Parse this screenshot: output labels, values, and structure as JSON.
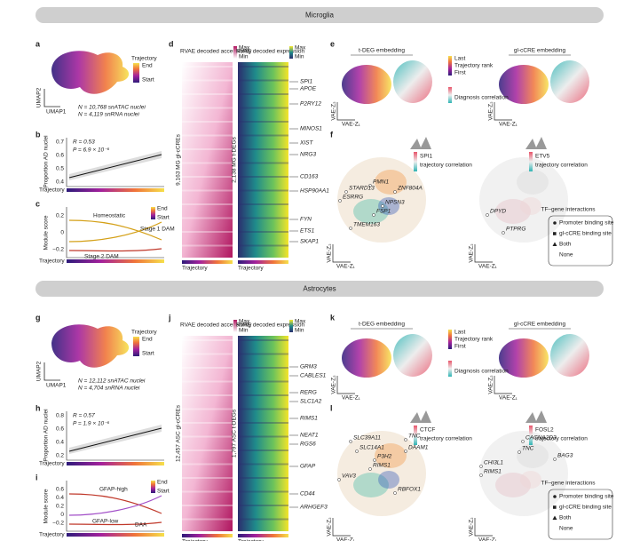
{
  "sections": [
    {
      "title": "Microglia",
      "umap": {
        "panel": "a",
        "legend_title": "Trajectory",
        "legend_end": "End",
        "legend_start": "Start",
        "y_axis": "UMAP2",
        "x_axis": "UMAP1",
        "counts": [
          "N = 10,768 snATAC nuclei",
          "N = 4,119 snRNA nuclei"
        ]
      },
      "trend": {
        "panel": "b",
        "stats": [
          "R = 0.53",
          "P = 6.9 × 10⁻⁶"
        ],
        "y_axis": "Proportion AD nuclei",
        "yticks": [
          0.7,
          0.6,
          0.5,
          0.4
        ],
        "x_axis": "Trajectory"
      },
      "modules": {
        "panel": "c",
        "y_axis": "Module score",
        "yticks": [
          0.2,
          0,
          {
            "value": -0.2,
            "label": "−0.2"
          }
        ],
        "legend": [
          "End",
          "Start"
        ],
        "names": [
          "Homeostatic",
          "Stage 1 DAM",
          "Stage 2 DAM"
        ],
        "x_axis": "Trajectory"
      },
      "heatmaps": {
        "panel": "d",
        "maps": [
          {
            "title": "RVAE decoded accessibility",
            "max": "Max",
            "min": "Min",
            "rows": "9,163 MG gl-cCREs",
            "x_axis": "Trajectory"
          },
          {
            "title": "RVAE decoded expression",
            "max": "Max",
            "min": "Min",
            "rows": "2,138 MG t-DEGs",
            "x_axis": "Trajectory"
          }
        ],
        "genes": [
          "SPI1",
          "APOE",
          "P2RY12",
          "MINOS1",
          "XIST",
          "NRG3",
          "CD163",
          "HSP90AA1",
          "FYN",
          "ETS1",
          "SKAP1"
        ]
      },
      "embeddings": {
        "panel": "e",
        "titles": [
          "t-DEG embedding",
          "gl-cCRE embedding"
        ],
        "rank_legend": [
          "Last",
          "Trajectory rank",
          "First"
        ],
        "diagnosis": "Diagnosis correlation",
        "axes": [
          "VAE-Z₂",
          "VAE-Z₁"
        ]
      },
      "networks": {
        "panel": "f",
        "tfs": [
          {
            "name": "SPI1",
            "note": "trajectory correlation",
            "genes": [
              "PMN1",
              "ZNF804A",
              "STARD13",
              "ESRRG",
              "NPSN3",
              "FSP1",
              "TMEM163"
            ]
          },
          {
            "name": "ETV5",
            "note": "trajectory correlation",
            "genes": [
              "DPYD",
              "PTPRG"
            ]
          }
        ],
        "legend_title": "TF–gene interactions",
        "legend": [
          "Promoter binding site",
          "gl-cCRE binding site",
          "Both",
          "None"
        ],
        "axes": [
          "VAE-Z₂",
          "VAE-Z₁"
        ]
      }
    },
    {
      "title": "Astrocytes",
      "umap": {
        "panel": "g",
        "legend_title": "Trajectory",
        "legend_end": "End",
        "legend_start": "Start",
        "y_axis": "UMAP2",
        "x_axis": "UMAP1",
        "counts": [
          "N = 12,112 snATAC nuclei",
          "N = 4,704 snRNA nuclei"
        ]
      },
      "trend": {
        "panel": "h",
        "stats": [
          "R = 0.57",
          "P = 1.9 × 10⁻⁶"
        ],
        "y_axis": "Proportion AD nuclei",
        "yticks": [
          0.8,
          0.6,
          0.4,
          0.2
        ],
        "x_axis": "Trajectory"
      },
      "modules": {
        "panel": "i",
        "y_axis": "Module score",
        "yticks": [
          0.6,
          0.4,
          0.2,
          0,
          {
            "value": -0.2,
            "label": "−0.2"
          }
        ],
        "legend": [
          "End",
          "Start"
        ],
        "names": [
          "GFAP-high",
          "GFAP-low",
          "DAA"
        ],
        "x_axis": "Trajectory"
      },
      "heatmaps": {
        "panel": "j",
        "maps": [
          {
            "title": "RVAE decoded accessibility",
            "max": "Max",
            "min": "Min",
            "rows": "12,457 ASC gl-cCREs",
            "x_axis": "Trajectory"
          },
          {
            "title": "RVAE decoded expression",
            "max": "Max",
            "min": "Min",
            "rows": "1,797 ASC t-DEGs",
            "x_axis": "Trajectory"
          }
        ],
        "genes": [
          "GRM3",
          "CABLES1",
          "RERG",
          "SLC1A2",
          "RIMS1",
          "NEAT1",
          "RGS6",
          "GFAP",
          "CD44",
          "ARHGEF3"
        ]
      },
      "embeddings": {
        "panel": "k",
        "titles": [
          "t-DEG embedding",
          "gl-cCRE embedding"
        ],
        "rank_legend": [
          "Last",
          "Trajectory rank",
          "First"
        ],
        "diagnosis": "Diagnosis correlation",
        "axes": [
          "VAE-Z₂",
          "VAE-Z₁"
        ]
      },
      "networks": {
        "panel": "l",
        "tfs": [
          {
            "name": "CTCF",
            "note": "trajectory correlation",
            "genes": [
              "SLC39A11",
              "SLC14A1",
              "P3H2",
              "RIMS1",
              "VAV3",
              "RBFOX1",
              "TNC",
              "DAAM1"
            ]
          },
          {
            "name": "FOSL2",
            "note": "trajectory correlation",
            "genes": [
              "CACNA2D3",
              "TNC",
              "CHI3L1",
              "RIMS1",
              "BAG3"
            ]
          }
        ],
        "legend_title": "TF–gene interactions",
        "legend": [
          "Promoter binding site",
          "gl-cCRE binding site",
          "Both",
          "None"
        ],
        "axes": [
          "VAE-Z₂",
          "VAE-Z₁"
        ]
      }
    }
  ]
}
